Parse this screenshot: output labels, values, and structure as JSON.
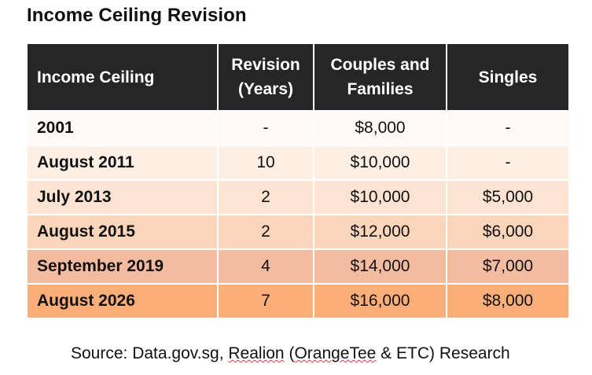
{
  "title": "Income Ceiling Revision",
  "table": {
    "headers": [
      "Income Ceiling",
      "Revision (Years)",
      "Couples and Families",
      "Singles"
    ],
    "rows": [
      {
        "cells": [
          "2001",
          "-",
          "$8,000",
          "-"
        ],
        "color": "#fffaf6"
      },
      {
        "cells": [
          "August 2011",
          "10",
          "$10,000",
          "-"
        ],
        "color": "#feefe5"
      },
      {
        "cells": [
          "July 2013",
          "2",
          "$10,000",
          "$5,000"
        ],
        "color": "#fde3d1"
      },
      {
        "cells": [
          "August 2015",
          "2",
          "$12,000",
          "$6,000"
        ],
        "color": "#fcd6bb"
      },
      {
        "cells": [
          "September 2019",
          "4",
          "$14,000",
          "$7,000"
        ],
        "color": "#f3bba0"
      },
      {
        "cells": [
          "August 2026",
          "7",
          "$16,000",
          "$8,000"
        ],
        "color": "#fbae78"
      }
    ]
  },
  "source": {
    "prefix": "Source: Data.gov.sg, ",
    "underlined": "Realion",
    "middle": " (",
    "underlined2": "OrangeTee",
    "suffix": " & ETC) Research"
  }
}
